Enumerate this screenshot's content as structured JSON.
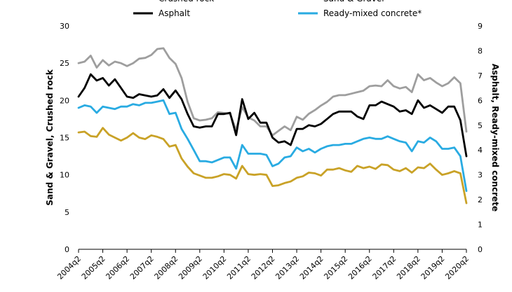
{
  "chart_data": {
    "type": "line",
    "xlabel": "",
    "ylabel_left": "Sand & Gravel, Crushed rock",
    "ylabel_right": "Asphalt, Ready-mixed concrete",
    "ylim_left": [
      0,
      30
    ],
    "ylim_right": [
      0,
      9
    ],
    "yticks_left": [
      0,
      5,
      10,
      15,
      20,
      25,
      30
    ],
    "yticks_right": [
      0,
      1,
      2,
      3,
      4,
      5,
      6,
      7,
      8,
      9
    ],
    "grid": false,
    "legend_position": "top, two columns",
    "x_tick_labels": [
      "2004q2",
      "2005q2",
      "2006q2",
      "2007q2",
      "2008q2",
      "2009q2",
      "2010q2",
      "2011q2",
      "2012q2",
      "2013q2",
      "2014q2",
      "2015q2",
      "2016q2",
      "2017q2",
      "2018q2",
      "2019q2",
      "2020q2"
    ],
    "x_start_label": "2004q2",
    "series": [
      {
        "name": "Crushed rock",
        "axis": "left",
        "color": "#9e9e9e",
        "values": [
          25.0,
          25.2,
          26.0,
          24.4,
          25.4,
          24.7,
          25.2,
          25.0,
          24.6,
          25.0,
          25.6,
          25.7,
          26.1,
          26.9,
          27.0,
          25.7,
          24.9,
          23.0,
          19.8,
          17.6,
          17.3,
          17.4,
          17.6,
          18.4,
          18.3,
          18.2,
          16.0,
          19.1,
          17.7,
          17.3,
          16.5,
          16.5,
          15.3,
          15.9,
          16.5,
          16.0,
          17.8,
          17.4,
          18.2,
          18.7,
          19.3,
          19.8,
          20.5,
          20.7,
          20.7,
          20.9,
          21.1,
          21.3,
          21.9,
          22.0,
          21.9,
          22.7,
          21.9,
          21.6,
          21.8,
          21.1,
          23.5,
          22.7,
          23.0,
          22.4,
          21.9,
          22.3,
          23.1,
          22.3,
          15.8
        ]
      },
      {
        "name": "Sand & Gravel",
        "axis": "left",
        "color": "#c9a227",
        "values": [
          15.7,
          15.8,
          15.2,
          15.1,
          16.3,
          15.4,
          15.0,
          14.6,
          15.0,
          15.6,
          15.0,
          14.8,
          15.3,
          15.1,
          14.8,
          13.8,
          14.0,
          12.2,
          11.1,
          10.2,
          9.9,
          9.6,
          9.6,
          9.8,
          10.1,
          10.0,
          9.5,
          11.2,
          10.1,
          10.0,
          10.1,
          10.0,
          8.5,
          8.6,
          8.9,
          9.1,
          9.6,
          9.8,
          10.3,
          10.2,
          9.9,
          10.7,
          10.7,
          10.9,
          10.6,
          10.4,
          11.2,
          10.9,
          11.1,
          10.8,
          11.4,
          11.3,
          10.7,
          10.5,
          10.9,
          10.3,
          11.0,
          10.9,
          11.5,
          10.7,
          10.0,
          10.2,
          10.5,
          10.2,
          6.2
        ]
      },
      {
        "name": "Asphalt",
        "axis": "right",
        "color": "#000000",
        "values": [
          6.15,
          6.5,
          7.05,
          6.8,
          6.9,
          6.6,
          6.85,
          6.5,
          6.15,
          6.1,
          6.25,
          6.2,
          6.15,
          6.2,
          6.45,
          6.1,
          6.4,
          6.05,
          5.45,
          4.95,
          4.9,
          4.95,
          4.95,
          5.45,
          5.45,
          5.5,
          4.6,
          6.05,
          5.25,
          5.5,
          5.1,
          5.1,
          4.5,
          4.3,
          4.35,
          4.2,
          4.85,
          4.85,
          5.0,
          4.95,
          5.05,
          5.25,
          5.45,
          5.55,
          5.55,
          5.55,
          5.35,
          5.25,
          5.8,
          5.8,
          5.95,
          5.85,
          5.75,
          5.55,
          5.6,
          5.45,
          6.0,
          5.7,
          5.8,
          5.65,
          5.5,
          5.75,
          5.75,
          5.2,
          3.75
        ]
      },
      {
        "name": "Ready-mixed concrete*",
        "axis": "right",
        "color": "#29abe2",
        "values": [
          5.7,
          5.8,
          5.75,
          5.5,
          5.75,
          5.7,
          5.65,
          5.75,
          5.75,
          5.85,
          5.8,
          5.9,
          5.9,
          5.95,
          6.0,
          5.45,
          5.5,
          4.85,
          4.45,
          4.0,
          3.55,
          3.55,
          3.5,
          3.6,
          3.7,
          3.7,
          3.25,
          4.2,
          3.85,
          3.85,
          3.85,
          3.8,
          3.35,
          3.45,
          3.7,
          3.75,
          4.1,
          3.95,
          4.05,
          3.9,
          4.05,
          4.15,
          4.2,
          4.2,
          4.25,
          4.25,
          4.35,
          4.45,
          4.5,
          4.45,
          4.45,
          4.55,
          4.45,
          4.35,
          4.3,
          3.95,
          4.35,
          4.3,
          4.5,
          4.35,
          4.05,
          4.05,
          4.1,
          3.75,
          2.35
        ]
      }
    ]
  }
}
